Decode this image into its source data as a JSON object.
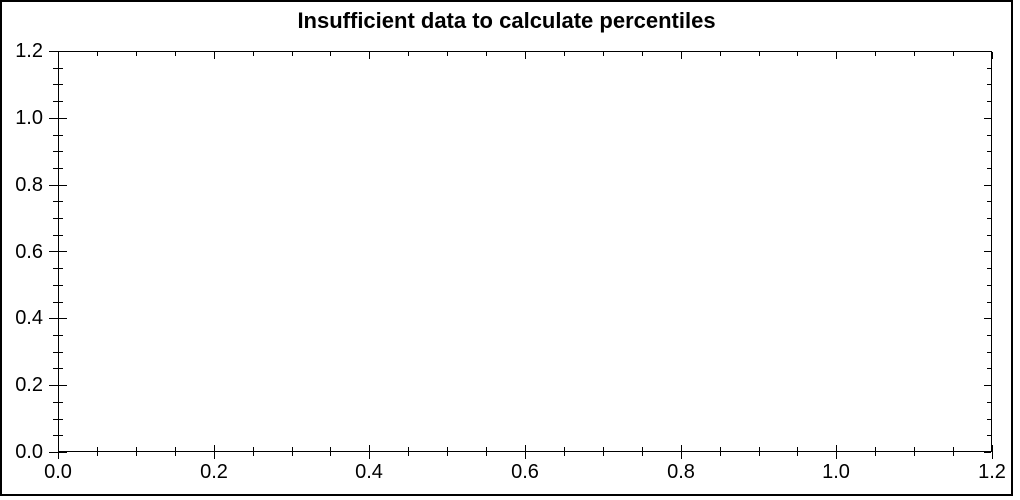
{
  "colors": {
    "background": "#ffffff",
    "border": "#000000",
    "axis": "#000000",
    "text": "#000000"
  },
  "chart_data": {
    "type": "scatter",
    "title": "Insufficient data to calculate percentiles",
    "series": [],
    "xlabel": "",
    "ylabel": "",
    "xlim": [
      0.0,
      1.2
    ],
    "ylim": [
      0.0,
      1.2
    ],
    "x_ticks": [
      0.0,
      0.2,
      0.4,
      0.6,
      0.8,
      1.0,
      1.2
    ],
    "x_tick_labels": [
      "0.0",
      "0.2",
      "0.4",
      "0.6",
      "0.8",
      "1.0",
      "1.2"
    ],
    "y_ticks": [
      0.0,
      0.2,
      0.4,
      0.6,
      0.8,
      1.0,
      1.2
    ],
    "y_tick_labels": [
      "0.0",
      "0.2",
      "0.4",
      "0.6",
      "0.8",
      "1.0",
      "1.2"
    ],
    "minor_tick_step": 0.05,
    "grid": false,
    "legend": null
  }
}
